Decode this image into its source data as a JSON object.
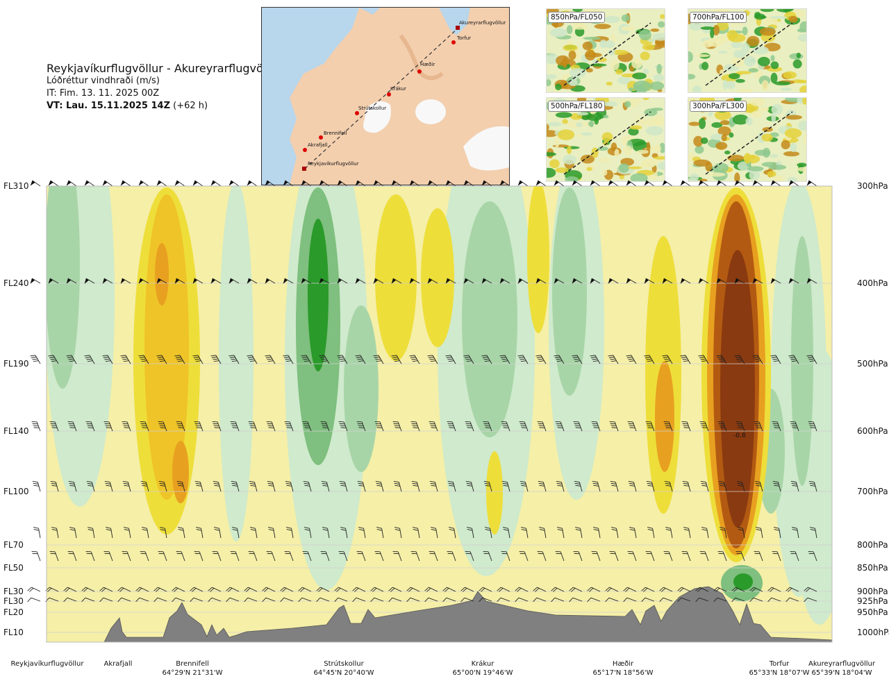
{
  "header": {
    "route": "Reykjavíkurflugvöllur - Akureyrarflugvöllur",
    "variable": "Lóðréttur vindhraði (m/s)",
    "it": "IT: Fim. 13. 11. 2025 00Z",
    "vt_bold": "VT: Lau. 15.11.2025 14Z",
    "vt_rest": " (+62 h)"
  },
  "map": {
    "waypoints": [
      "Akureyrarflugvöllur",
      "Torfur",
      "Hæðir",
      "Krákur",
      "Strútskollur",
      "Brennifell",
      "Akrafjall",
      "Reykjavíkurflugvöllur"
    ]
  },
  "insets": [
    "850hPa/FL050",
    "700hPa/FL100",
    "500hPa/FL180",
    "300hPa/FL300"
  ],
  "colors": {
    "green_dark": "#2a9a2a",
    "green_mid": "#7fbf7f",
    "green_light": "#a8d5a8",
    "green_pale": "#cfeacc",
    "yellow_pale": "#f5efa8",
    "yellow": "#eede3a",
    "orange": "#e8a020",
    "brown": "#8a3a10",
    "terrain": "#808080"
  },
  "chart_data": {
    "type": "heatmap",
    "title": "Lóðréttur vindhraði (m/s)",
    "left_axis_labels": [
      "FL310",
      "FL240",
      "FL190",
      "FL140",
      "FL100",
      "FL70",
      "FL50",
      "FL30",
      "FL30",
      "FL20",
      "FL10"
    ],
    "right_axis_labels": [
      "300hPa",
      "400hPa",
      "500hPa",
      "600hPa",
      "700hPa",
      "800hPa",
      "850hPa",
      "900hPa",
      "925hPa",
      "950hPa",
      "1000hPa"
    ],
    "pressure_levels_hPa": [
      300,
      400,
      500,
      600,
      700,
      800,
      850,
      900,
      925,
      950,
      1000
    ],
    "annotation": "-0.8",
    "locations": [
      {
        "name": "Reykjavíkurflugvöllur",
        "coord": ""
      },
      {
        "name": "Akrafjall",
        "coord": ""
      },
      {
        "name": "Brennifell",
        "coord": "64°29'N 21°31'W"
      },
      {
        "name": "Strútskollur",
        "coord": "64°45'N 20°40'W"
      },
      {
        "name": "Krákur",
        "coord": "65°00'N 19°46'W"
      },
      {
        "name": "Hæðir",
        "coord": "65°17'N 18°56'W"
      },
      {
        "name": "Torfur",
        "coord": "65°33'N 18°07'W"
      },
      {
        "name": "Akureyrarflugvöllur",
        "coord": "65°39'N 18°04'W"
      }
    ],
    "grid": true
  }
}
